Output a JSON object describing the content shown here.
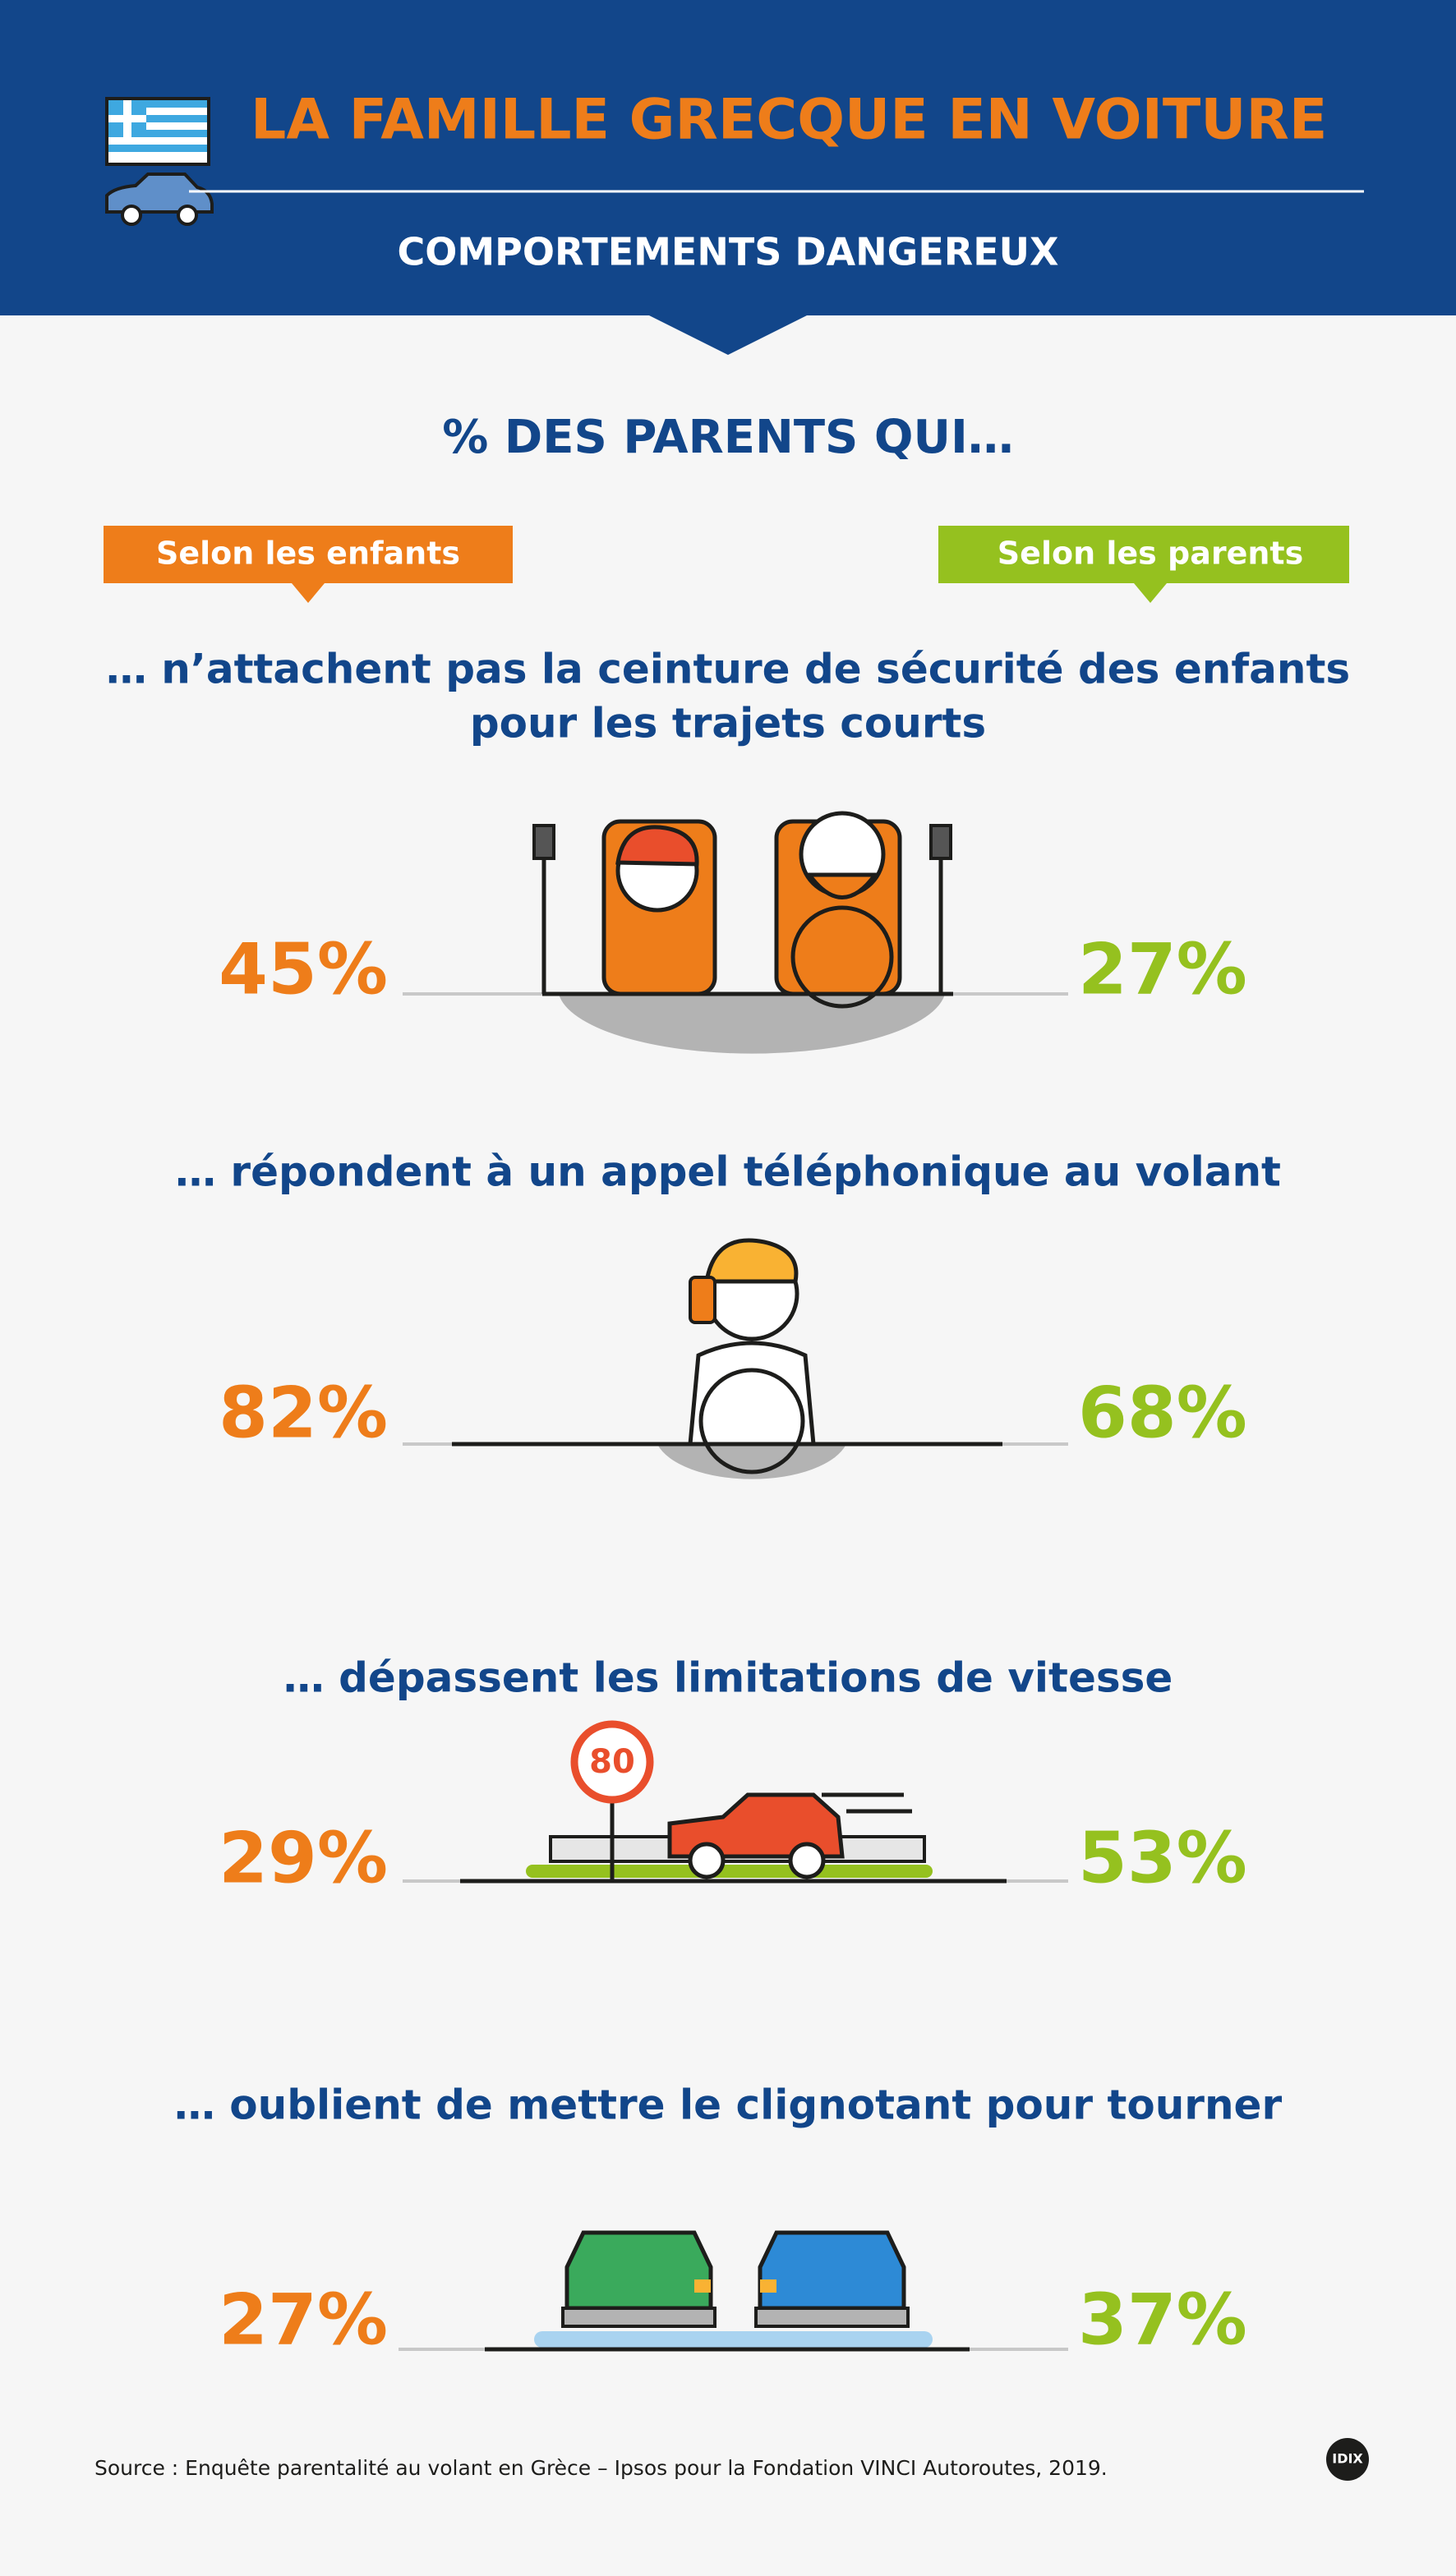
{
  "header": {
    "title": "LA FAMILLE GRECQUE EN VOITURE",
    "subtitle": "COMPORTEMENTS DANGEREUX"
  },
  "heading": "% DES PARENTS QUI…",
  "legend": {
    "left": "Selon les enfants",
    "right": "Selon les parents"
  },
  "items": [
    {
      "question": [
        "… n’attachent pas la ceinture de sécurité des enfants",
        "pour les trajets courts"
      ],
      "children": "45%",
      "parents": "27%"
    },
    {
      "question": [
        "… répondent à un appel téléphonique au volant"
      ],
      "children": "82%",
      "parents": "68%"
    },
    {
      "question": [
        "… dépassent les limitations de vitesse"
      ],
      "children": "29%",
      "parents": "53%",
      "sign": "80"
    },
    {
      "question": [
        "… oublient de mettre le clignotant pour tourner"
      ],
      "children": "27%",
      "parents": "37%"
    }
  ],
  "source": "Source : Enquête parentalité au volant en Grèce – Ipsos pour la Fondation VINCI Autoroutes, 2019.",
  "logo": "IDIX"
}
